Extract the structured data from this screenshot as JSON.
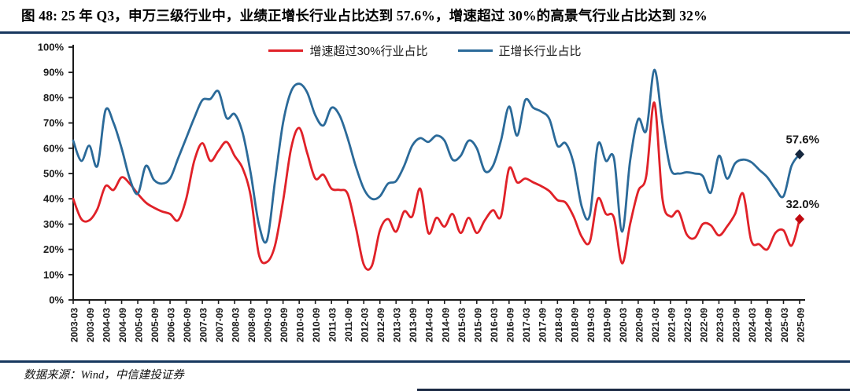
{
  "header": {
    "title": "图 48: 25 年 Q3，申万三级行业中，业绩正增长行业占比达到 57.6%，增速超过 30%的高景气行业占比达到 32%"
  },
  "footer": {
    "source": "数据来源：Wind，中信建投证券"
  },
  "chart_data": {
    "type": "line",
    "title": "",
    "xlabel": "",
    "ylabel": "",
    "ylim": [
      0,
      100
    ],
    "grid": false,
    "legend_position": "top-center",
    "x_frequency": "quarterly",
    "x_start": "2003-03",
    "x_end": "2025-09",
    "y_ticks": [
      "0%",
      "10%",
      "20%",
      "30%",
      "40%",
      "50%",
      "60%",
      "70%",
      "80%",
      "90%",
      "100%"
    ],
    "x_tick_labels": [
      "2003-03",
      "2003-09",
      "2004-03",
      "2004-09",
      "2005-03",
      "2005-09",
      "2006-03",
      "2006-09",
      "2007-03",
      "2007-09",
      "2008-03",
      "2008-09",
      "2009-03",
      "2009-09",
      "2010-03",
      "2010-09",
      "2011-03",
      "2011-09",
      "2012-03",
      "2012-09",
      "2013-03",
      "2013-09",
      "2014-03",
      "2014-09",
      "2015-03",
      "2015-09",
      "2016-03",
      "2016-09",
      "2017-03",
      "2017-09",
      "2018-03",
      "2018-09",
      "2019-03",
      "2019-09",
      "2020-03",
      "2020-09",
      "2021-03",
      "2021-09",
      "2022-03",
      "2022-09",
      "2023-03",
      "2023-09",
      "2024-03",
      "2024-09",
      "2025-03",
      "2025-09"
    ],
    "series": [
      {
        "name": "增速超过30%行业占比",
        "color": "#e02128",
        "marker_color": "#c00a10",
        "end_label": "32.0%",
        "end_value": 32.0,
        "values": [
          40,
          32,
          31.5,
          36,
          45,
          43.5,
          48.5,
          46,
          42,
          38.5,
          36.5,
          35,
          34,
          31.5,
          40,
          55,
          62,
          55,
          59,
          62.5,
          57,
          52,
          41,
          18,
          15,
          21.5,
          39,
          60,
          68,
          58,
          48,
          49.5,
          44,
          43.5,
          42,
          29,
          14,
          13.5,
          27.5,
          32,
          27,
          35,
          33,
          44,
          26.5,
          32.5,
          29,
          34,
          26.5,
          32.5,
          26.5,
          31.5,
          35.5,
          33,
          52,
          46.5,
          48,
          46.5,
          45,
          43,
          39.5,
          38.5,
          33,
          25,
          23,
          40,
          34,
          32.5,
          14.5,
          30,
          43,
          49,
          78,
          40,
          33,
          35,
          26,
          24.5,
          30,
          29.5,
          25.5,
          29,
          34,
          42,
          23.5,
          22,
          20,
          26.5,
          27.5,
          21.5,
          32
        ]
      },
      {
        "name": "正增长行业占比",
        "color": "#2b6a99",
        "marker_color": "#16283f",
        "end_label": "57.6%",
        "end_value": 57.6,
        "values": [
          63,
          55,
          61,
          53,
          75,
          70,
          60,
          48,
          42,
          53,
          47.5,
          46,
          48,
          56,
          64,
          72,
          79,
          79.5,
          82.5,
          72,
          73.5,
          66,
          50,
          30,
          23.5,
          47,
          70,
          82.5,
          85.5,
          82,
          73,
          69,
          76,
          73,
          64,
          53,
          44,
          40,
          41,
          46,
          47,
          53,
          61,
          64,
          62.5,
          65,
          63,
          55.5,
          57,
          63,
          60,
          51,
          53,
          63,
          76.5,
          65,
          79,
          76,
          74.5,
          71.5,
          61,
          62,
          54,
          37,
          33.5,
          61.5,
          55,
          56,
          27,
          55,
          71.5,
          67,
          91,
          70,
          52,
          50,
          50.5,
          50,
          49,
          42.5,
          57,
          48,
          54,
          55.5,
          54.5,
          51.5,
          48.5,
          44,
          41,
          53,
          57.6
        ]
      }
    ]
  }
}
